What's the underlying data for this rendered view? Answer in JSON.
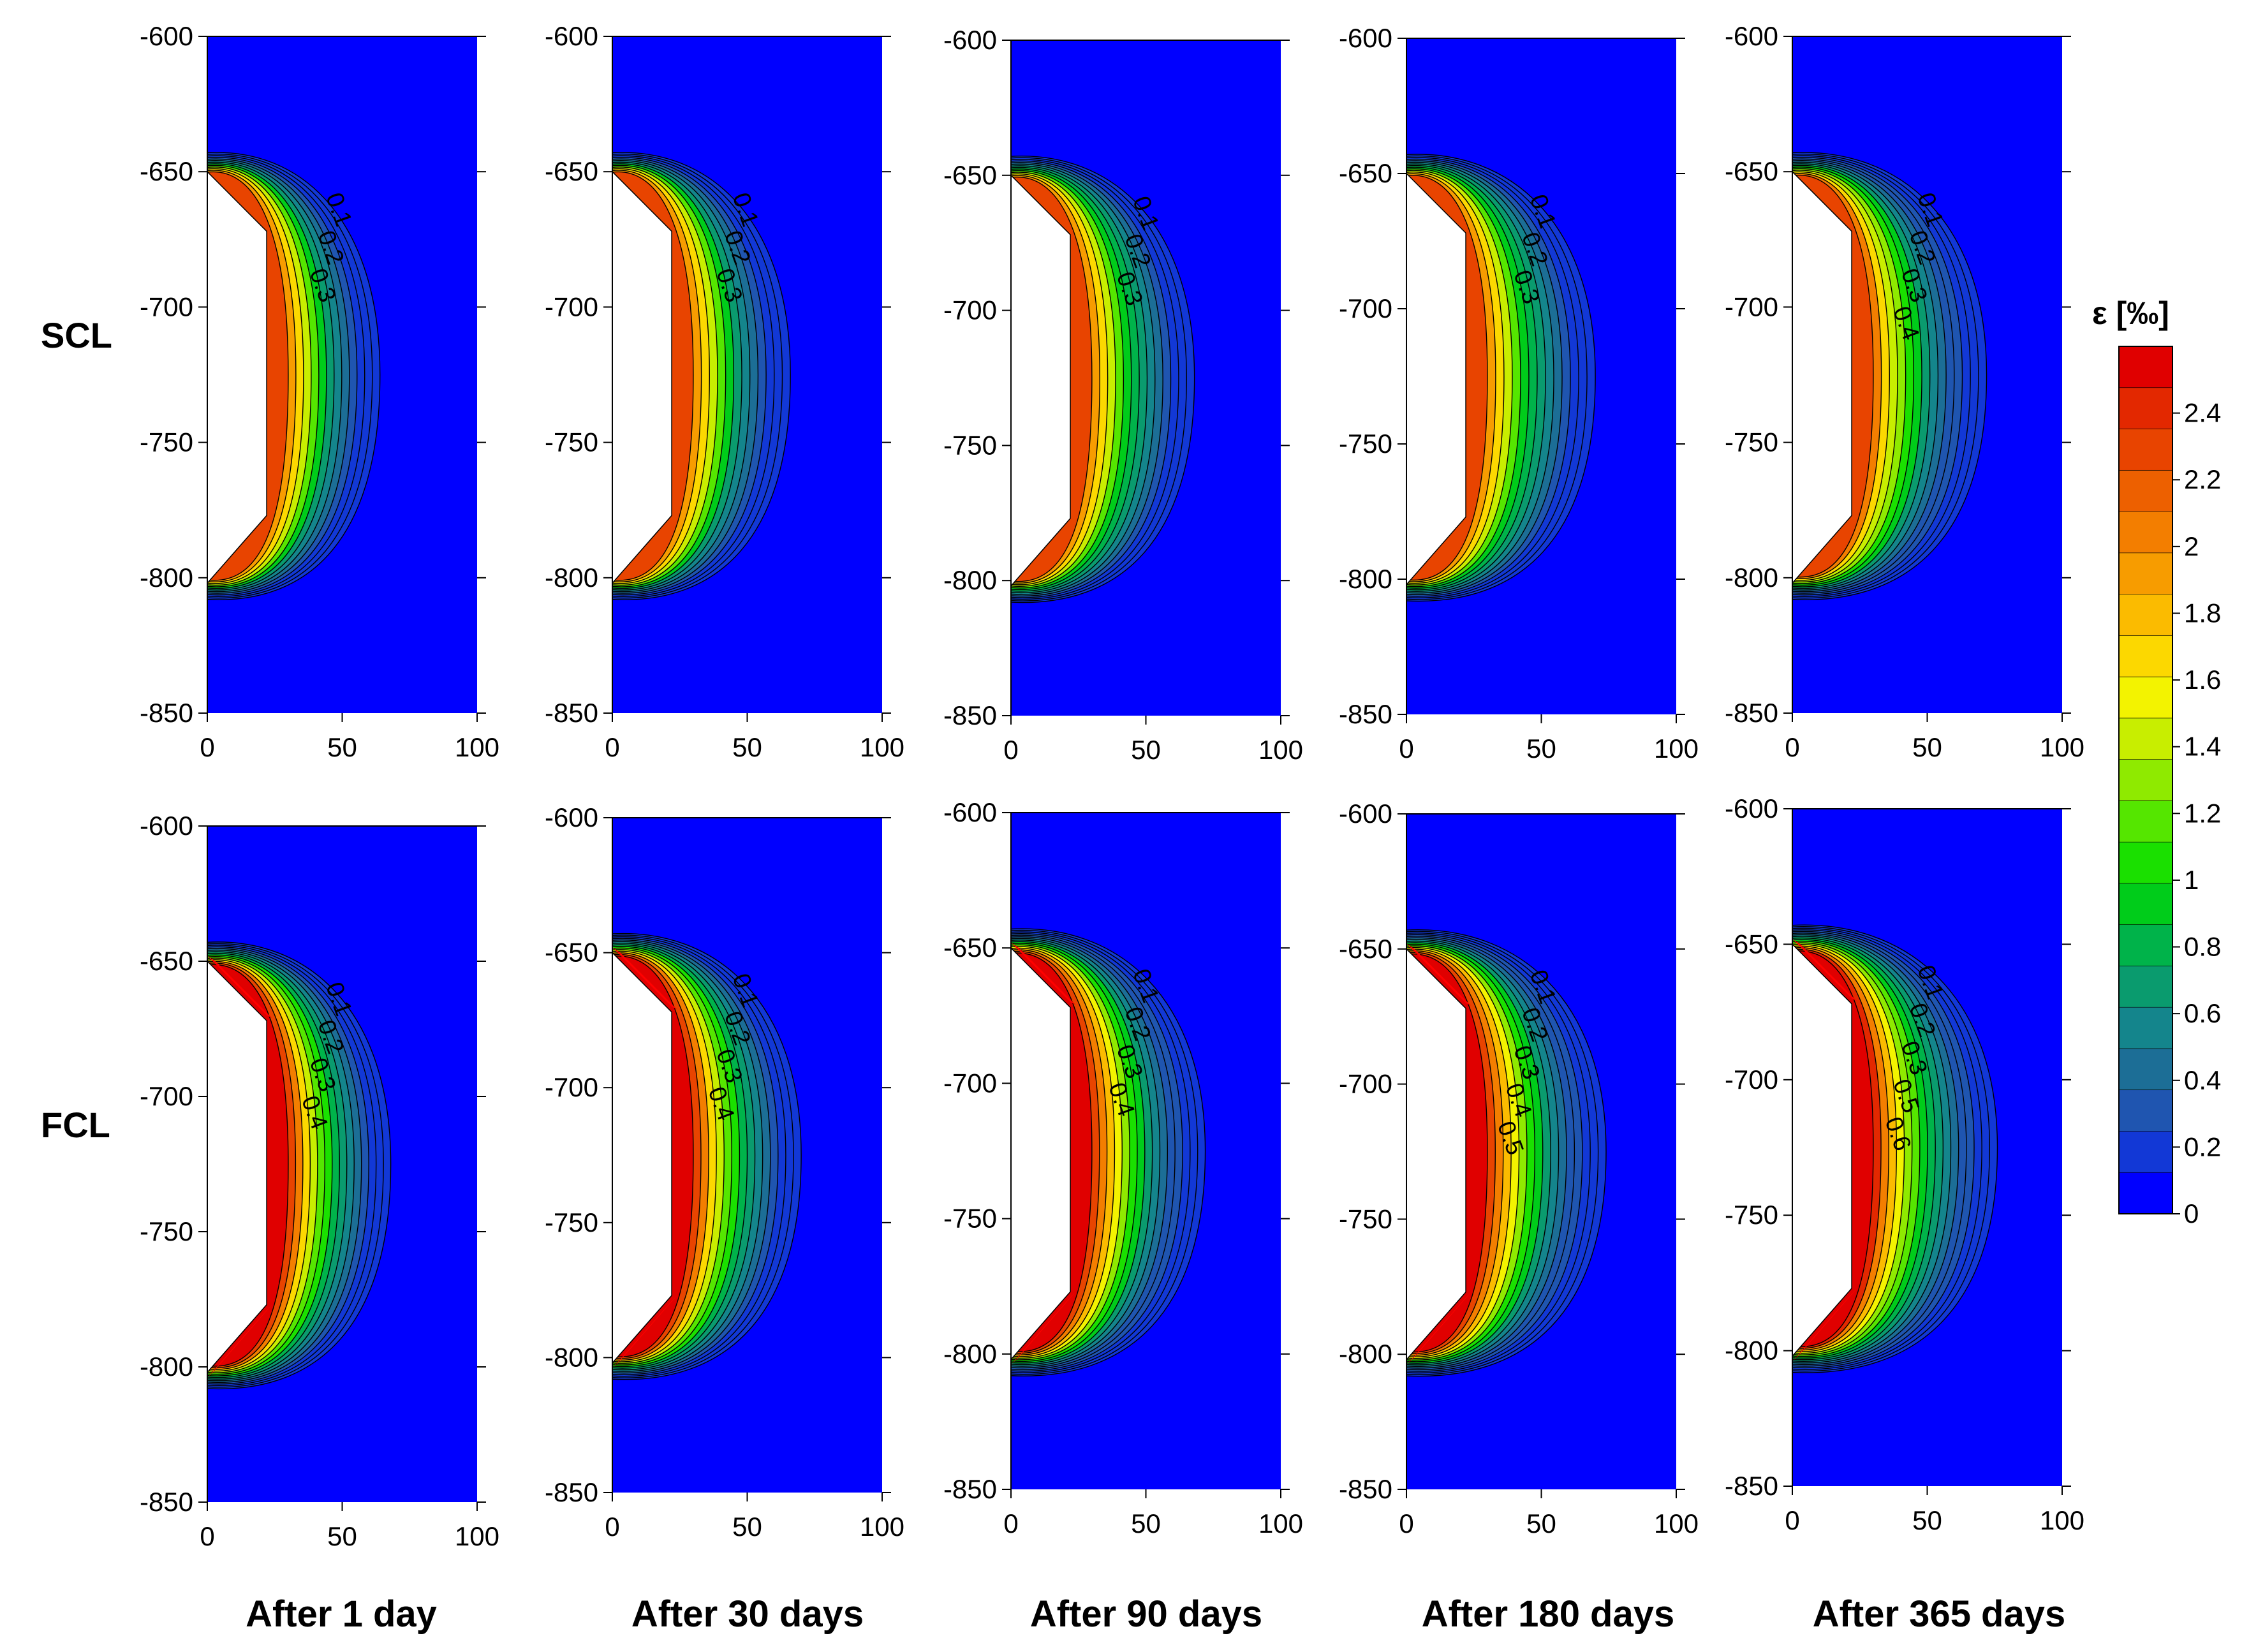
{
  "chart_data": {
    "type": "contour",
    "description_title": "Strain contour maps",
    "x_axis": {
      "ticks": [
        0,
        50,
        100
      ],
      "range": [
        0,
        100
      ]
    },
    "y_axis": {
      "ticks": [
        -600,
        -650,
        -700,
        -750,
        -800,
        -850
      ],
      "range": [
        -850,
        -600
      ]
    },
    "rows": [
      {
        "label": "SCL"
      },
      {
        "label": "FCL"
      }
    ],
    "columns": [
      {
        "label": "After 1 day"
      },
      {
        "label": "After 30 days"
      },
      {
        "label": "After 90 days"
      },
      {
        "label": "After 180 days"
      },
      {
        "label": "After 365 days"
      }
    ],
    "panels": [
      {
        "row": "SCL",
        "column": "After 1 day",
        "contour_labels": [
          "0.1",
          "0.2",
          "0.3"
        ]
      },
      {
        "row": "SCL",
        "column": "After 30 days",
        "contour_labels": [
          "0.1",
          "0.2",
          "0.3"
        ]
      },
      {
        "row": "SCL",
        "column": "After 90 days",
        "contour_labels": [
          "0.1",
          "0.2",
          "0.3"
        ]
      },
      {
        "row": "SCL",
        "column": "After 180 days",
        "contour_labels": [
          "0.1",
          "0.2",
          "0.3"
        ]
      },
      {
        "row": "SCL",
        "column": "After 365 days",
        "contour_labels": [
          "0.1",
          "0.2",
          "0.3",
          "0.4"
        ]
      },
      {
        "row": "FCL",
        "column": "After 1 day",
        "contour_labels": [
          "0.1",
          "0.2",
          "0.3",
          "0.4"
        ]
      },
      {
        "row": "FCL",
        "column": "After 30 days",
        "contour_labels": [
          "0.1",
          "0.2",
          "0.3",
          "0.4"
        ]
      },
      {
        "row": "FCL",
        "column": "After 90 days",
        "contour_labels": [
          "0.1",
          "0.2",
          "0.3",
          "0.4"
        ]
      },
      {
        "row": "FCL",
        "column": "After 180 days",
        "contour_labels": [
          "0.1",
          "0.2",
          "0.3",
          "0.4",
          "0.5"
        ]
      },
      {
        "row": "FCL",
        "column": "After 365 days",
        "contour_labels": [
          "0.1",
          "0.2",
          "0.3",
          "0.5",
          "0.6"
        ]
      }
    ],
    "colorbar": {
      "title": "ε [‰]",
      "min": 0,
      "max": 2.6,
      "tick_labels": [
        "0",
        "0.2",
        "0.4",
        "0.6",
        "0.8",
        "1",
        "1.2",
        "1.4",
        "1.6",
        "1.8",
        "2",
        "2.2",
        "2.4"
      ],
      "tick_values": [
        0,
        0.2,
        0.4,
        0.6,
        0.8,
        1.0,
        1.2,
        1.4,
        1.6,
        1.8,
        2.0,
        2.2,
        2.4
      ],
      "colors": [
        "#0000ff",
        "#1238d6",
        "#1f55b0",
        "#1c6e96",
        "#14858c",
        "#0a9b6e",
        "#00b34a",
        "#00cc1a",
        "#1ae000",
        "#55e600",
        "#8fea00",
        "#c8ee00",
        "#f3f300",
        "#fcd800",
        "#fbbb00",
        "#f79c00",
        "#f37e00",
        "#ed6000",
        "#e84400",
        "#e32800",
        "#e00000"
      ]
    }
  }
}
